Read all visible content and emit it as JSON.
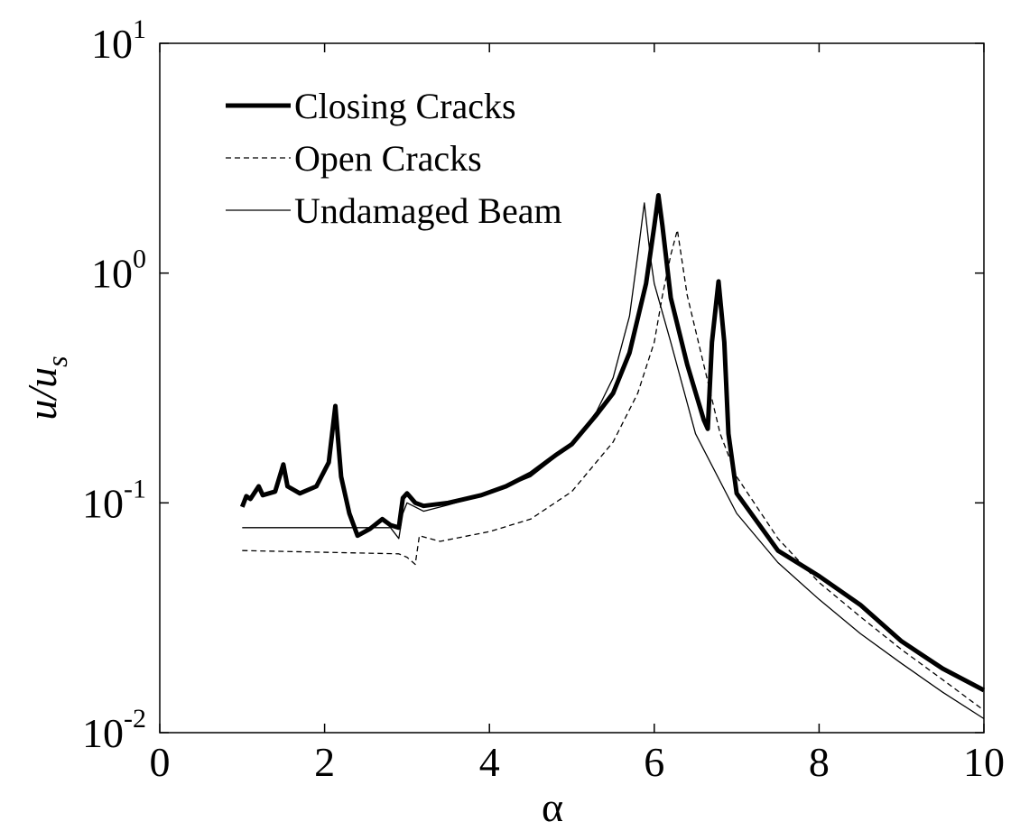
{
  "chart_data": {
    "type": "line",
    "xlabel": "α",
    "ylabel": "u/u_s",
    "xlim": [
      0,
      10
    ],
    "ylim": [
      0.01,
      10
    ],
    "ylog": true,
    "xticks": [
      0,
      2,
      4,
      6,
      8,
      10
    ],
    "yticks": [
      {
        "value": 0.01,
        "label": "10^-2"
      },
      {
        "value": 0.1,
        "label": "10^-1"
      },
      {
        "value": 1,
        "label": "10^0"
      },
      {
        "value": 10,
        "label": "10^1"
      }
    ],
    "legend": "upper left",
    "series": [
      {
        "name": "Closing Cracks",
        "color": "#000000",
        "style": "solid",
        "width": 5,
        "x": [
          1.0,
          1.05,
          1.1,
          1.2,
          1.25,
          1.4,
          1.5,
          1.55,
          1.7,
          1.9,
          2.05,
          2.13,
          2.2,
          2.3,
          2.4,
          2.55,
          2.7,
          2.8,
          2.9,
          2.95,
          3.0,
          3.1,
          3.2,
          3.5,
          3.9,
          4.2,
          4.5,
          4.8,
          5.0,
          5.3,
          5.5,
          5.7,
          5.9,
          6.0,
          6.05,
          6.1,
          6.2,
          6.4,
          6.6,
          6.65,
          6.7,
          6.78,
          6.85,
          6.9,
          7.0,
          7.5,
          8.0,
          8.5,
          9.0,
          9.5,
          10.0
        ],
        "values": [
          0.096,
          0.107,
          0.104,
          0.118,
          0.108,
          0.112,
          0.147,
          0.118,
          0.11,
          0.118,
          0.15,
          0.264,
          0.13,
          0.09,
          0.072,
          0.077,
          0.085,
          0.08,
          0.078,
          0.105,
          0.11,
          0.1,
          0.097,
          0.1,
          0.108,
          0.118,
          0.134,
          0.161,
          0.18,
          0.242,
          0.3,
          0.45,
          0.9,
          1.6,
          2.18,
          1.6,
          0.78,
          0.4,
          0.23,
          0.21,
          0.5,
          0.92,
          0.5,
          0.2,
          0.11,
          0.062,
          0.048,
          0.036,
          0.025,
          0.019,
          0.0153
        ]
      },
      {
        "name": "Open Cracks",
        "color": "#000000",
        "style": "dashed",
        "width": 1.3,
        "x": [
          1.0,
          2.9,
          3.0,
          3.1,
          3.15,
          3.4,
          4.0,
          4.5,
          5.0,
          5.5,
          5.8,
          6.0,
          6.1,
          6.2,
          6.28,
          6.4,
          6.6,
          6.8,
          7.0,
          7.5,
          8.0,
          8.5,
          9.0,
          9.5,
          10.0
        ],
        "values": [
          0.062,
          0.06,
          0.058,
          0.054,
          0.072,
          0.068,
          0.075,
          0.085,
          0.112,
          0.184,
          0.3,
          0.5,
          0.8,
          1.2,
          1.54,
          0.8,
          0.4,
          0.2,
          0.13,
          0.07,
          0.045,
          0.032,
          0.023,
          0.017,
          0.0125
        ]
      },
      {
        "name": "Undamaged Beam",
        "color": "#000000",
        "style": "solid",
        "width": 1.3,
        "x": [
          1.0,
          2.5,
          2.8,
          2.9,
          2.95,
          3.0,
          3.2,
          3.5,
          4.0,
          4.5,
          5.0,
          5.3,
          5.5,
          5.7,
          5.8,
          5.88,
          5.95,
          6.0,
          6.2,
          6.5,
          7.0,
          7.5,
          8.0,
          8.5,
          9.0,
          9.5,
          10.0
        ],
        "values": [
          0.078,
          0.078,
          0.078,
          0.07,
          0.09,
          0.1,
          0.092,
          0.098,
          0.11,
          0.13,
          0.18,
          0.25,
          0.35,
          0.65,
          1.2,
          2.02,
          1.2,
          0.9,
          0.5,
          0.2,
          0.09,
          0.055,
          0.038,
          0.027,
          0.02,
          0.015,
          0.0115
        ]
      }
    ]
  }
}
